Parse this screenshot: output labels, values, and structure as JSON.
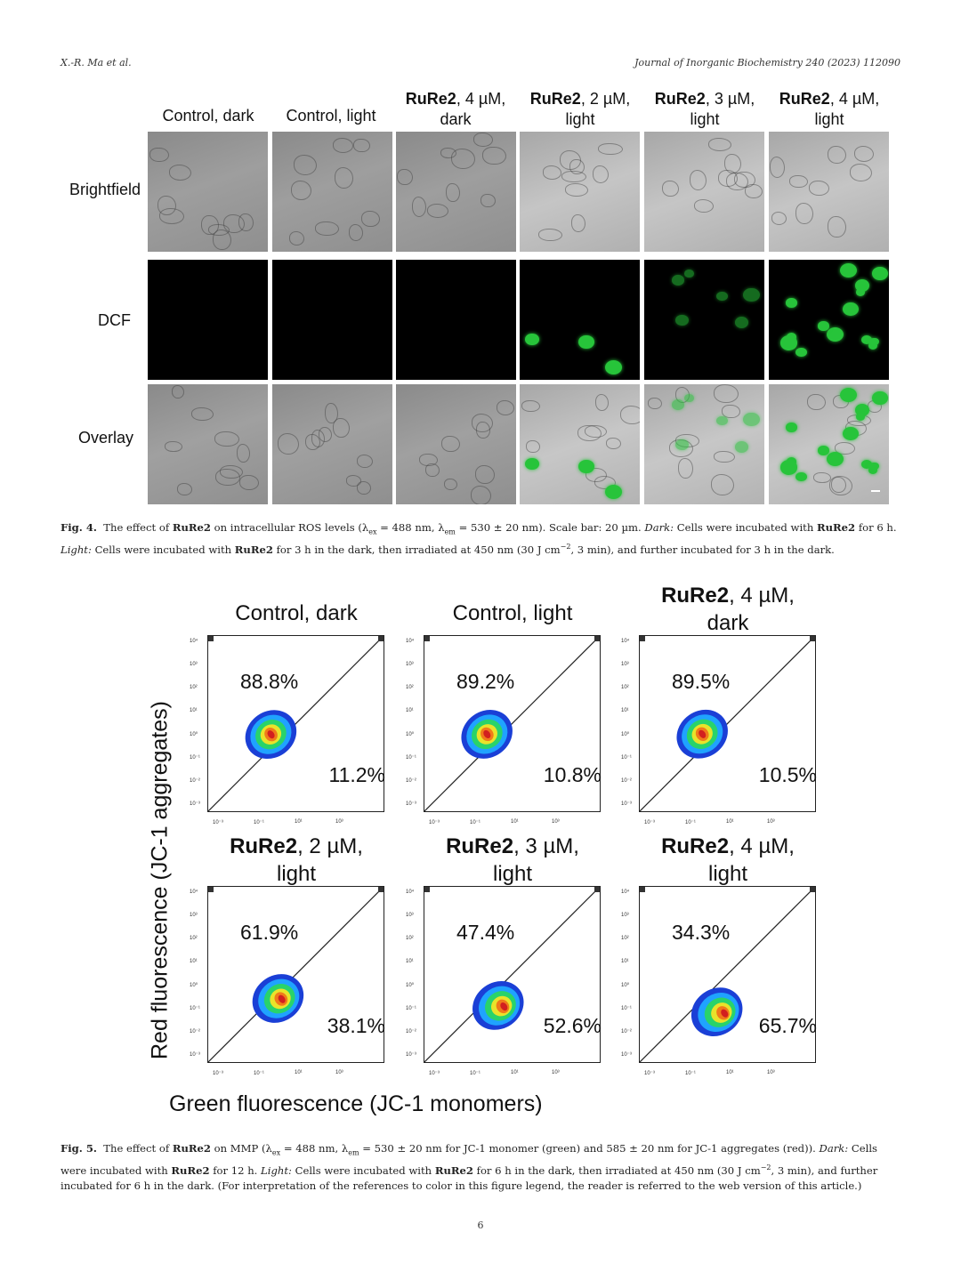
{
  "header": {
    "authors": "X.-R. Ma et al.",
    "journal": "Journal of Inorganic Biochemistry 240 (2023) 112090"
  },
  "fig4": {
    "columns": [
      {
        "bold": "",
        "rest": "Control, dark",
        "line2": ""
      },
      {
        "bold": "",
        "rest": "Control, light",
        "line2": ""
      },
      {
        "bold": "RuRe2",
        "rest": ", 4 µM,",
        "line2": "dark"
      },
      {
        "bold": "RuRe2",
        "rest": ", 2 µM,",
        "line2": "light"
      },
      {
        "bold": "RuRe2",
        "rest": ", 3 µM,",
        "line2": "light"
      },
      {
        "bold": "RuRe2",
        "rest": ", 4 µM,",
        "line2": "light"
      }
    ],
    "rows": [
      "Brightfield",
      "DCF",
      "Overlay"
    ],
    "caption": {
      "label": "Fig. 4.",
      "t1": "The effect of",
      "compound": "RuRe2",
      "t2": "on intracellular ROS levels (λ",
      "sub_ex": "ex",
      "t3": "= 488 nm, λ",
      "sub_em": "em",
      "t4": "= 530 ± 20 nm). Scale bar: 20 µm.",
      "dark_label": "Dark:",
      "t5": "Cells were incubated with",
      "t6": "for 6 h.",
      "light_label": "Light:",
      "t7": "Cells were incubated with",
      "t8": "for 3 h in the dark, then irradiated at 450 nm (30 J cm",
      "sup": "−2",
      "t9": ", 3 min), and further incubated for 3 h in the dark."
    }
  },
  "fig5": {
    "panels": [
      {
        "bold": "",
        "rest": "Control, dark",
        "line2": "",
        "upper": "88.8%",
        "lower": "11.2%"
      },
      {
        "bold": "",
        "rest": "Control, light",
        "line2": "",
        "upper": "89.2%",
        "lower": "10.8%"
      },
      {
        "bold": "RuRe2",
        "rest": ", 4 µM,",
        "line2": "dark",
        "upper": "89.5%",
        "lower": "10.5%"
      },
      {
        "bold": "RuRe2",
        "rest": ", 2 µM,",
        "line2": "light",
        "upper": "61.9%",
        "lower": "38.1%"
      },
      {
        "bold": "RuRe2",
        "rest": ", 3 µM,",
        "line2": "light",
        "upper": "47.4%",
        "lower": "52.6%"
      },
      {
        "bold": "RuRe2",
        "rest": ", 4 µM,",
        "line2": "light",
        "upper": "34.3%",
        "lower": "65.7%"
      }
    ],
    "ylabel": "Red fluorescence (JC-1 aggregates)",
    "xlabel": "Green fluorescence (JC-1 monomers)",
    "yticks": [
      "10⁴",
      "10³",
      "10²",
      "10¹",
      "10⁰",
      "10⁻¹",
      "10⁻²",
      "10⁻³"
    ],
    "xticks": [
      "10⁻³",
      "10⁻¹",
      "10¹",
      "10³"
    ],
    "caption": {
      "label": "Fig. 5.",
      "t1": "The effect of",
      "compound": "RuRe2",
      "t2": "on MMP (λ",
      "sub_ex": "ex",
      "t3": "= 488 nm, λ",
      "sub_em": "em",
      "t4": "= 530 ± 20 nm for JC-1 monomer (green) and 585 ± 20 nm for JC-1 aggregates (red)).",
      "dark_label": "Dark:",
      "t5": "Cells were incubated with",
      "t6": "for 12 h.",
      "light_label": "Light:",
      "t7": "Cells were incubated with",
      "t8": "for 6 h in the dark, then irradiated at 450 nm (30 J cm",
      "sup": "−2",
      "t9": ", 3 min), and further incubated for 6 h in the dark. (For interpretation of the references to color in this figure legend, the reader is referred to the web version of this article.)"
    }
  },
  "page_number": "6"
}
